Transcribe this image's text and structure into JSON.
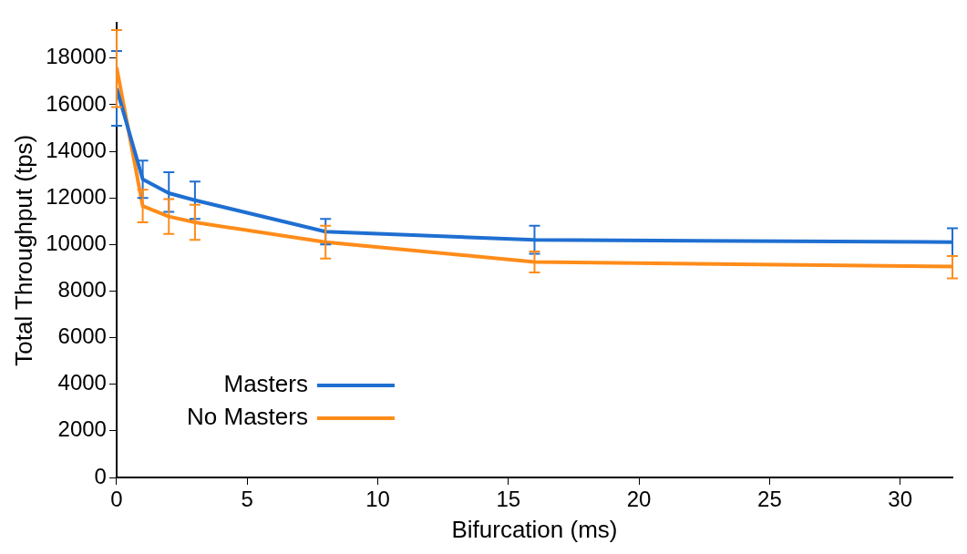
{
  "chart_data": {
    "type": "line",
    "xlabel": "Bifurcation (ms)",
    "ylabel": "Total Throughput (tps)",
    "x": [
      0,
      1,
      2,
      3,
      8,
      16,
      32
    ],
    "xlim": [
      0,
      32
    ],
    "xticks": [
      0,
      5,
      10,
      15,
      20,
      25,
      30
    ],
    "ylim": [
      0,
      19500
    ],
    "yticks": [
      0,
      2000,
      4000,
      6000,
      8000,
      10000,
      12000,
      14000,
      16000,
      18000
    ],
    "grid": false,
    "legend": "bottom left",
    "marker": "none",
    "line_style": "solid",
    "series": [
      {
        "name": "Masters",
        "color": "#1f6fd1",
        "values": [
          16700,
          12800,
          12200,
          11900,
          10550,
          10200,
          10100
        ],
        "errors": [
          [
            15100,
            18300
          ],
          [
            12000,
            13600
          ],
          [
            11400,
            13100
          ],
          [
            11100,
            12700
          ],
          [
            10000,
            11100
          ],
          [
            9600,
            10800
          ],
          [
            9500,
            10700
          ]
        ]
      },
      {
        "name": "No Masters",
        "color": "#ff8c1a",
        "values": [
          17600,
          11650,
          11200,
          10950,
          10100,
          9250,
          9050
        ],
        "errors": [
          [
            15900,
            19200
          ],
          [
            10950,
            12350
          ],
          [
            10450,
            11950
          ],
          [
            10200,
            11700
          ],
          [
            9400,
            10800
          ],
          [
            8800,
            9700
          ],
          [
            8550,
            9500
          ]
        ]
      }
    ]
  }
}
